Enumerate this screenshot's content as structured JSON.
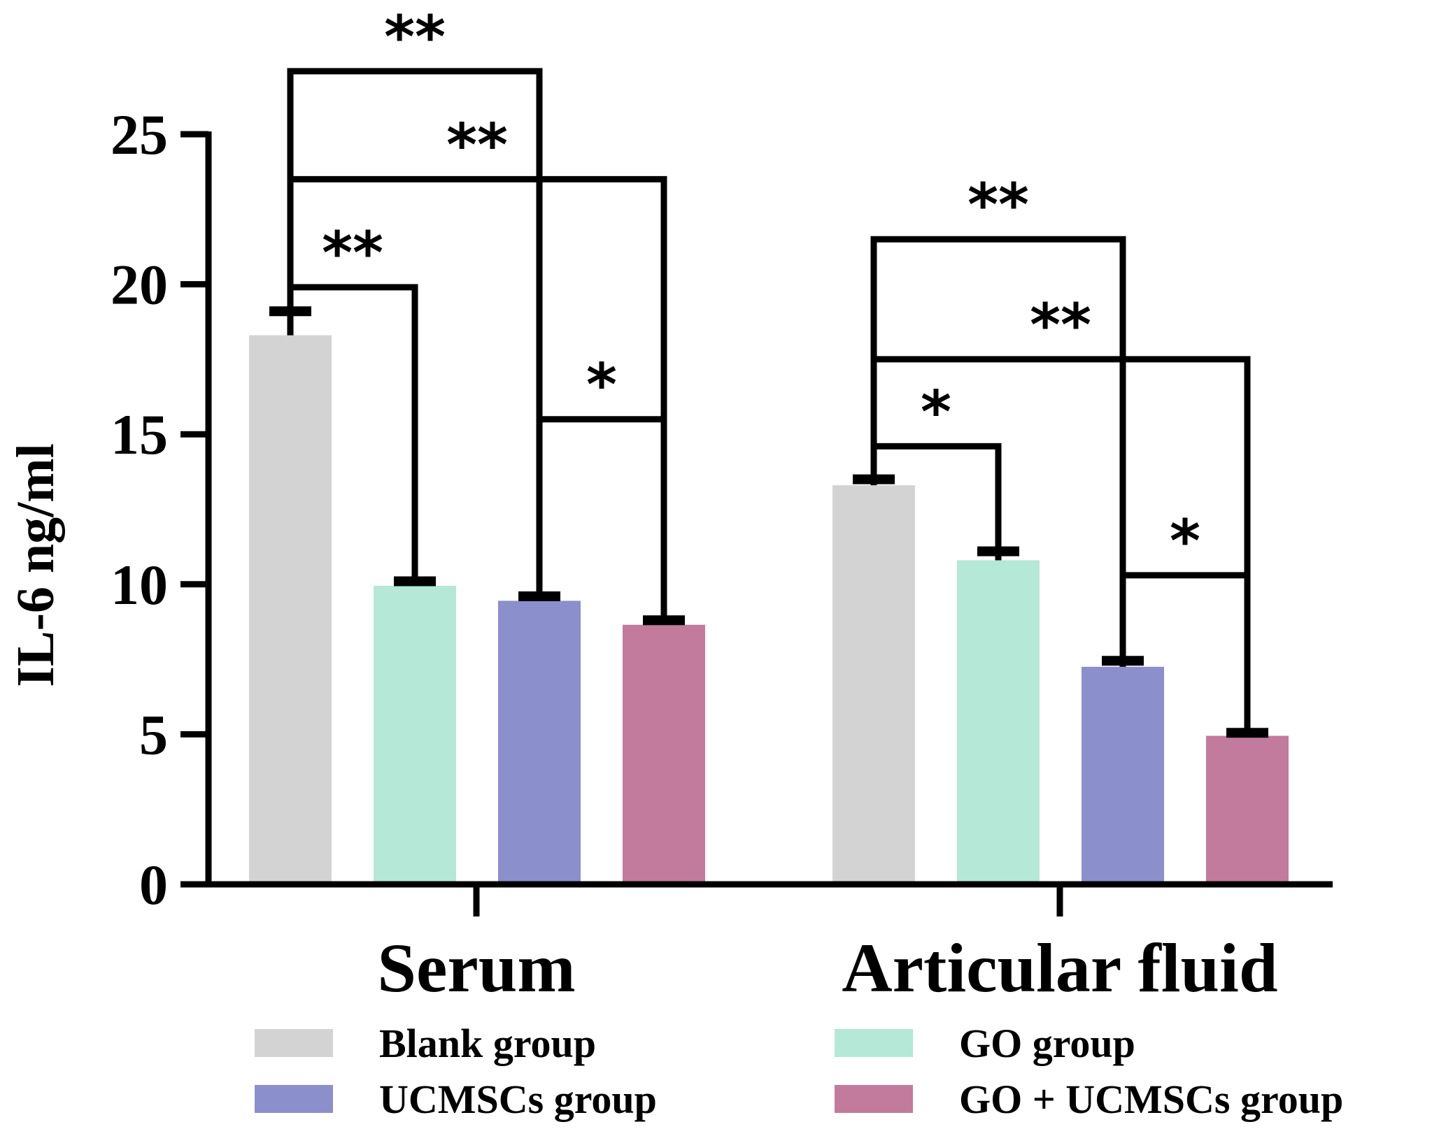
{
  "chart_data": {
    "type": "bar",
    "title": "",
    "xlabel": "",
    "ylabel": "IL-6 ng/ml",
    "ylim": [
      0,
      25
    ],
    "yticks": [
      0,
      5,
      10,
      15,
      20,
      25
    ],
    "categories": [
      "Serum",
      "Articular fluid"
    ],
    "series": [
      {
        "name": "Blank group",
        "color": "#d3d3d3",
        "values": [
          18.3,
          13.3
        ],
        "errors": [
          0.8,
          0.2
        ]
      },
      {
        "name": "GO group",
        "color": "#b5e8d6",
        "values": [
          9.95,
          10.8
        ],
        "errors": [
          0.15,
          0.3
        ]
      },
      {
        "name": "UCMSCs group",
        "color": "#8b8fcc",
        "values": [
          9.45,
          7.25
        ],
        "errors": [
          0.15,
          0.2
        ]
      },
      {
        "name": "GO + UCMSCs group",
        "color": "#c27b9c",
        "values": [
          8.65,
          4.95
        ],
        "errors": [
          0.15,
          0.1
        ]
      }
    ],
    "significance": [
      {
        "category": 0,
        "from": 0,
        "to": 1,
        "bracket_y": 19.9,
        "label": "**"
      },
      {
        "category": 0,
        "from": 0,
        "to": 2,
        "bracket_y": 27.1,
        "label": "**"
      },
      {
        "category": 0,
        "from": 0,
        "to": 3,
        "bracket_y": 23.5,
        "label": "**"
      },
      {
        "category": 0,
        "from": 2,
        "to": 3,
        "bracket_y": 15.5,
        "label": "*"
      },
      {
        "category": 1,
        "from": 0,
        "to": 1,
        "bracket_y": 14.6,
        "label": "*"
      },
      {
        "category": 1,
        "from": 0,
        "to": 2,
        "bracket_y": 21.5,
        "label": "**"
      },
      {
        "category": 1,
        "from": 0,
        "to": 3,
        "bracket_y": 17.5,
        "label": "**"
      },
      {
        "category": 1,
        "from": 2,
        "to": 3,
        "bracket_y": 10.3,
        "label": "*"
      }
    ],
    "legend_position": "bottom"
  }
}
